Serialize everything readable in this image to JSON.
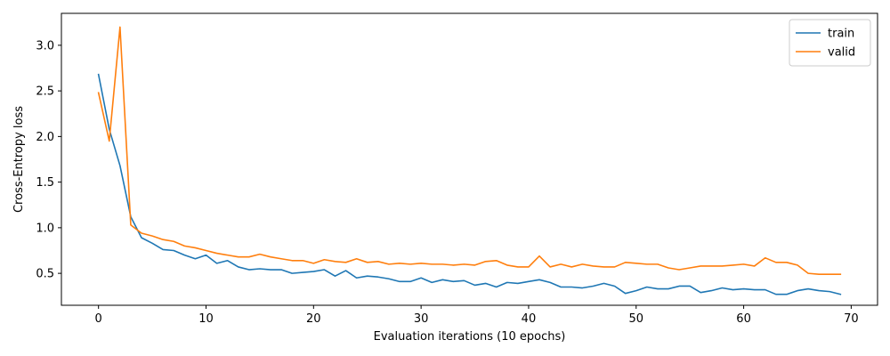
{
  "chart_data": {
    "type": "line",
    "title": "",
    "xlabel": "Evaluation iterations (10 epochs)",
    "ylabel": "Cross-Entropy loss",
    "xlim": [
      -3.45,
      72.45
    ],
    "ylim": [
      0.15,
      3.35
    ],
    "xticks": [
      0,
      10,
      20,
      30,
      40,
      50,
      60,
      70
    ],
    "yticks": [
      0.5,
      1.0,
      1.5,
      2.0,
      2.5,
      3.0
    ],
    "xtick_labels": [
      "0",
      "10",
      "20",
      "30",
      "40",
      "50",
      "60",
      "70"
    ],
    "ytick_labels": [
      "0.5",
      "1.0",
      "1.5",
      "2.0",
      "2.5",
      "3.0"
    ],
    "grid": false,
    "legend_position": "top-right",
    "series": [
      {
        "name": "train",
        "color": "#1f77b4",
        "values": [
          2.68,
          2.08,
          1.68,
          1.12,
          0.89,
          0.83,
          0.76,
          0.75,
          0.7,
          0.66,
          0.7,
          0.61,
          0.64,
          0.57,
          0.54,
          0.55,
          0.54,
          0.54,
          0.5,
          0.51,
          0.52,
          0.54,
          0.47,
          0.53,
          0.45,
          0.47,
          0.46,
          0.44,
          0.41,
          0.41,
          0.45,
          0.4,
          0.43,
          0.41,
          0.42,
          0.37,
          0.39,
          0.35,
          0.4,
          0.39,
          0.41,
          0.43,
          0.4,
          0.35,
          0.35,
          0.34,
          0.36,
          0.39,
          0.36,
          0.28,
          0.31,
          0.35,
          0.33,
          0.33,
          0.36,
          0.36,
          0.29,
          0.31,
          0.34,
          0.32,
          0.33,
          0.32,
          0.32,
          0.27,
          0.27,
          0.31,
          0.33,
          0.31,
          0.3,
          0.27
        ]
      },
      {
        "name": "valid",
        "color": "#ff7f0e",
        "values": [
          2.48,
          1.95,
          3.2,
          1.03,
          0.94,
          0.91,
          0.87,
          0.85,
          0.8,
          0.78,
          0.75,
          0.72,
          0.7,
          0.68,
          0.68,
          0.71,
          0.68,
          0.66,
          0.64,
          0.64,
          0.61,
          0.65,
          0.63,
          0.62,
          0.66,
          0.62,
          0.63,
          0.6,
          0.61,
          0.6,
          0.61,
          0.6,
          0.6,
          0.59,
          0.6,
          0.59,
          0.63,
          0.64,
          0.59,
          0.57,
          0.57,
          0.69,
          0.57,
          0.6,
          0.57,
          0.6,
          0.58,
          0.57,
          0.57,
          0.62,
          0.61,
          0.6,
          0.6,
          0.56,
          0.54,
          0.56,
          0.58,
          0.58,
          0.58,
          0.59,
          0.6,
          0.58,
          0.67,
          0.62,
          0.62,
          0.59,
          0.5,
          0.49,
          0.49,
          0.49
        ]
      }
    ]
  }
}
